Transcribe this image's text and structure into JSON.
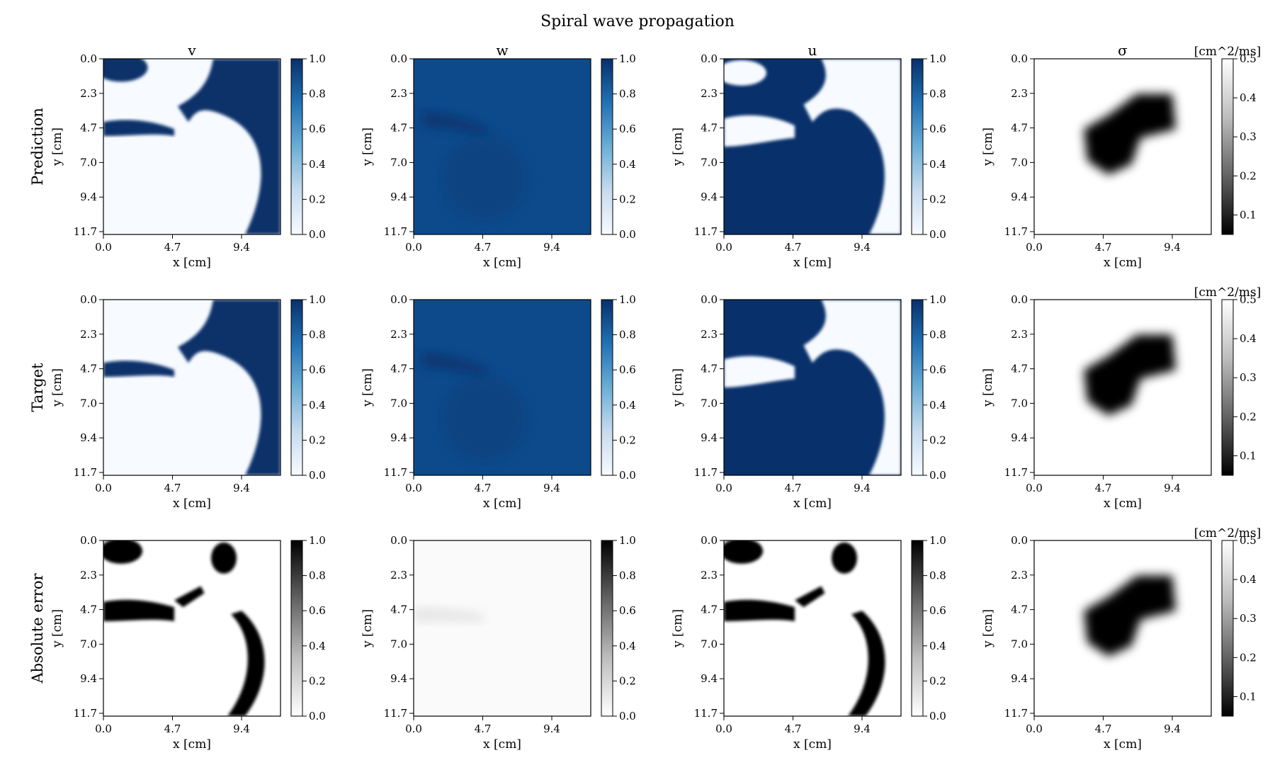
{
  "figure": {
    "title": "Spiral wave propagation",
    "row_labels": [
      "Prediction",
      "Target",
      "Absolute error"
    ],
    "column_titles": [
      "v",
      "w",
      "u",
      "σ"
    ],
    "sigma_unit": "[cm^2/ms]",
    "x_label": "x [cm]",
    "y_label": "y [cm]"
  },
  "chart_data": [
    {
      "type": "heatmap",
      "panel_grid": {
        "rows": 3,
        "columns": 4
      },
      "x_ticks": [
        "0.0",
        "4.7",
        "9.4"
      ],
      "y_ticks": [
        "0.0",
        "2.3",
        "4.7",
        "7.0",
        "9.4",
        "11.7"
      ],
      "x_range_cm": [
        0,
        12
      ],
      "y_range_cm": [
        0,
        12
      ],
      "colorbars": {
        "unit_range": {
          "ticks": [
            "0.0",
            "0.2",
            "0.4",
            "0.6",
            "0.8",
            "1.0"
          ],
          "range": [
            0,
            1
          ]
        },
        "sigma": {
          "ticks": [
            "0.1",
            "0.2",
            "0.3",
            "0.4",
            "0.5"
          ],
          "range": [
            0.05,
            0.5
          ]
        }
      },
      "colormaps": {
        "blues": [
          "#f7fbff",
          "#c6dbef",
          "#6baed6",
          "#2171b5",
          "#08306b"
        ],
        "greys": [
          "#ffffff",
          "#bdbdbd",
          "#636363",
          "#000000"
        ],
        "greys_r": [
          "#000000",
          "#636363",
          "#bdbdbd",
          "#ffffff"
        ]
      },
      "panels": [
        {
          "row": "Prediction",
          "column": "v",
          "colormap": "blues",
          "description_level": "front"
        },
        {
          "row": "Prediction",
          "column": "w",
          "colormap": "blues",
          "description_level": "high"
        },
        {
          "row": "Prediction",
          "column": "u",
          "colormap": "blues",
          "description_level": "inverse-front"
        },
        {
          "row": "Prediction",
          "column": "σ",
          "colormap": "greys_r",
          "description_level": "blob"
        },
        {
          "row": "Target",
          "column": "v",
          "colormap": "blues",
          "description_level": "front"
        },
        {
          "row": "Target",
          "column": "w",
          "colormap": "blues",
          "description_level": "high"
        },
        {
          "row": "Target",
          "column": "u",
          "colormap": "blues",
          "description_level": "inverse-front"
        },
        {
          "row": "Target",
          "column": "σ",
          "colormap": "greys_r",
          "description_level": "blob"
        },
        {
          "row": "Absolute error",
          "column": "v",
          "colormap": "greys",
          "description_level": "error"
        },
        {
          "row": "Absolute error",
          "column": "w",
          "colormap": "greys",
          "description_level": "low"
        },
        {
          "row": "Absolute error",
          "column": "u",
          "colormap": "greys",
          "description_level": "error"
        },
        {
          "row": "Absolute error",
          "column": "σ",
          "colormap": "greys_r",
          "description_level": "blob"
        }
      ]
    }
  ]
}
